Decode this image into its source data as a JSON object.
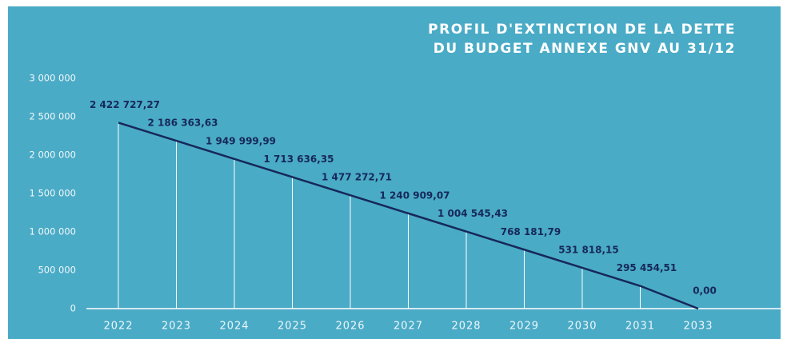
{
  "chart_data": {
    "type": "line",
    "title": [
      "PROFIL D'EXTINCTION DE LA DETTE",
      "DU BUDGET ANNEXE GNV AU 31/12"
    ],
    "categories": [
      "2022",
      "2023",
      "2024",
      "2025",
      "2026",
      "2027",
      "2028",
      "2029",
      "2030",
      "2031",
      "2033"
    ],
    "values": [
      2422727.27,
      2186363.63,
      1949999.99,
      1713636.35,
      1477272.71,
      1240909.07,
      1004545.43,
      768181.79,
      531818.15,
      295454.51,
      0
    ],
    "value_labels": [
      "2 422 727,27",
      "2 186 363,63",
      "1 949 999,99",
      "1 713 636,35",
      "1 477 272,71",
      "1 240 909,07",
      "1 004 545,43",
      "768 181,79",
      "531 818,15",
      "295 454,51",
      "0,00"
    ],
    "color": "#16285a",
    "ylim": [
      0,
      3000000
    ],
    "yticks": [
      0,
      {
        "value": 500000,
        "label": "500 000"
      },
      {
        "value": 1000000,
        "label": "1 000 000"
      },
      {
        "value": 1500000,
        "label": "1 500 000"
      },
      {
        "value": 2000000,
        "label": "2 000 000"
      },
      {
        "value": 2500000,
        "label": "2 500 000"
      },
      {
        "value": 3000000,
        "label": "3 000 000"
      }
    ],
    "drop_lines": true
  }
}
